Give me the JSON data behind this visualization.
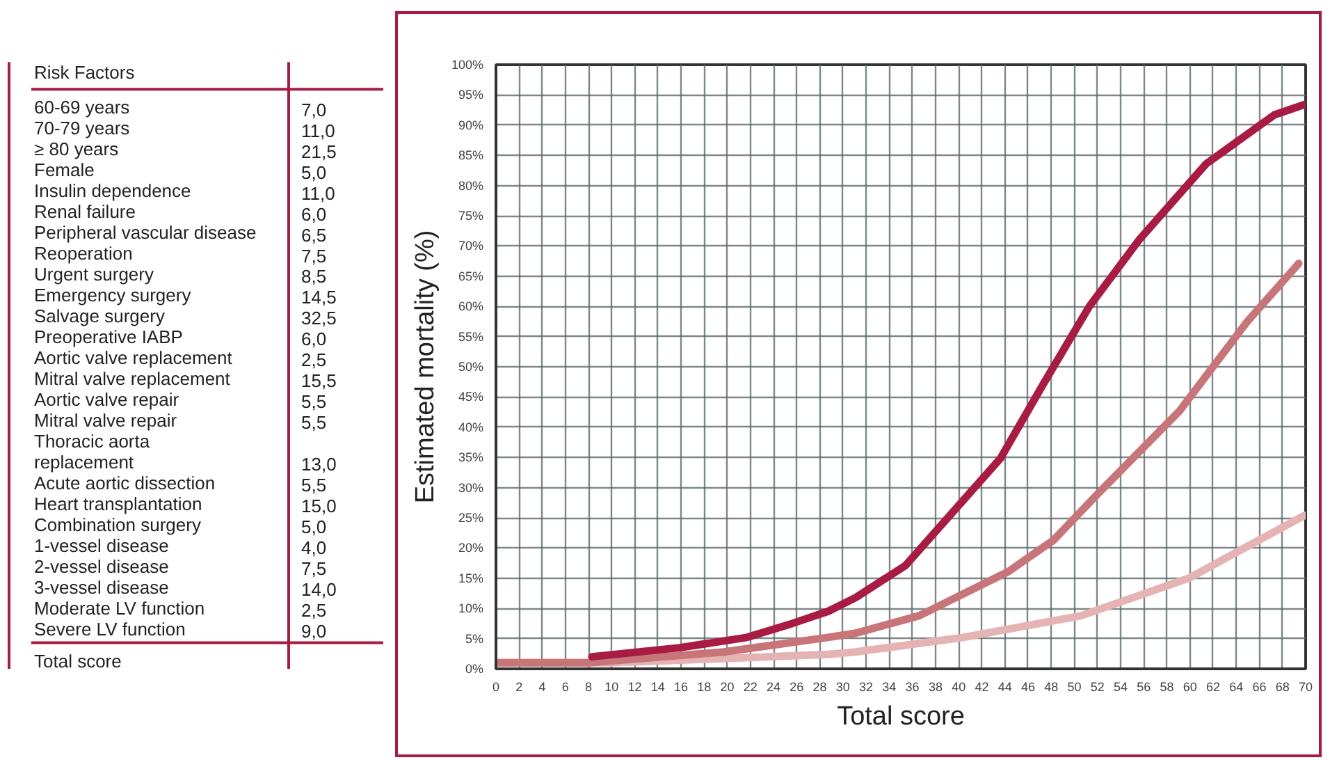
{
  "chart_data": [
    {
      "type": "other",
      "title": "Risk Factors",
      "categories": [
        "60-69 years",
        "70-79 years",
        "≥ 80 years",
        "Female",
        "Insulin dependence",
        "Renal failure",
        "Peripheral vascular disease",
        "Reoperation",
        "Urgent surgery",
        "Emergency surgery",
        "Salvage surgery",
        "Preoperative IABP",
        "Aortic valve replacement",
        "Mitral valve replacement",
        "Aortic valve repair",
        "Mitral valve repair",
        "Thoracic aorta\nreplacement",
        "Acute aortic dissection",
        "Heart transplantation",
        "Combination surgery",
        "1-vessel disease",
        "2-vessel disease",
        "3-vessel disease",
        "Moderate LV function",
        "Severe LV function"
      ],
      "value_labels": [
        "7,0",
        "11,0",
        "21,5",
        "5,0",
        "11,0",
        "6,0",
        "6,5",
        "7,5",
        "8,5",
        "14,5",
        "32,5",
        "6,0",
        "2,5",
        "15,5",
        "5,5",
        "5,5",
        "13,0",
        "5,5",
        "15,0",
        "5,0",
        "4,0",
        "7,5",
        "14,0",
        "2,5",
        "9,0"
      ],
      "annotations": [
        "Total score"
      ]
    },
    {
      "type": "line",
      "xlabel": "Total score",
      "ylabel": "Estimated mortality (%)",
      "grid": true,
      "line_style": "solid",
      "marker": "none",
      "xlim": [
        0,
        70
      ],
      "ylim": [
        0,
        100
      ],
      "xticks": [
        0,
        2,
        4,
        6,
        8,
        10,
        12,
        14,
        16,
        18,
        20,
        22,
        24,
        26,
        28,
        30,
        32,
        34,
        36,
        38,
        40,
        42,
        44,
        46,
        48,
        50,
        52,
        54,
        56,
        58,
        60,
        62,
        64,
        66,
        68,
        70
      ],
      "yticks": [
        {
          "value": 0,
          "label": "0%"
        },
        {
          "value": 5,
          "label": "5%"
        },
        {
          "value": 10,
          "label": "10%"
        },
        {
          "value": 15,
          "label": "15%"
        },
        {
          "value": 20,
          "label": "20%"
        },
        {
          "value": 25,
          "label": "25%"
        },
        {
          "value": 30,
          "label": "30%"
        },
        {
          "value": 35,
          "label": "35%"
        },
        {
          "value": 40,
          "label": "40%"
        },
        {
          "value": 45,
          "label": "45%"
        },
        {
          "value": 50,
          "label": "50%"
        },
        {
          "value": 55,
          "label": "55%"
        },
        {
          "value": 60,
          "label": "60%"
        },
        {
          "value": 65,
          "label": "65%"
        },
        {
          "value": 70,
          "label": "70%"
        },
        {
          "value": 75,
          "label": "75%"
        },
        {
          "value": 80,
          "label": "80%"
        },
        {
          "value": 85,
          "label": "85%"
        },
        {
          "value": 90,
          "label": "90%"
        },
        {
          "value": 95,
          "label": "95%"
        },
        {
          "value": 100,
          "label": "100%"
        }
      ],
      "series": [
        {
          "color": "#e5b3b3",
          "x": [
            0,
            10,
            19.7,
            28.7,
            31.1,
            40.4,
            50.6,
            59.9,
            69.9
          ],
          "values": [
            1,
            1,
            1.7,
            2.4,
            2.8,
            5.2,
            8.8,
            15,
            25.4
          ]
        },
        {
          "color": "#c8757a",
          "x": [
            0,
            8,
            19.7,
            28.7,
            31.1,
            36.6,
            44.3,
            48.2,
            52.1,
            59.1,
            65,
            69.4
          ],
          "values": [
            1,
            1,
            2.8,
            5.2,
            5.9,
            8.8,
            16.1,
            21.3,
            29.1,
            42.7,
            57.6,
            67.1
          ]
        },
        {
          "color": "#a81c44",
          "x": [
            8.3,
            15.9,
            21.7,
            25.6,
            28.7,
            31.1,
            35.4,
            43.6,
            47.4,
            51.3,
            55.6,
            61.4,
            67.3,
            69.9
          ],
          "values": [
            2,
            3.5,
            5.2,
            7.5,
            9.5,
            11.8,
            17.1,
            34.8,
            47.4,
            60,
            71,
            83.6,
            91.7,
            93.4
          ]
        }
      ]
    }
  ]
}
